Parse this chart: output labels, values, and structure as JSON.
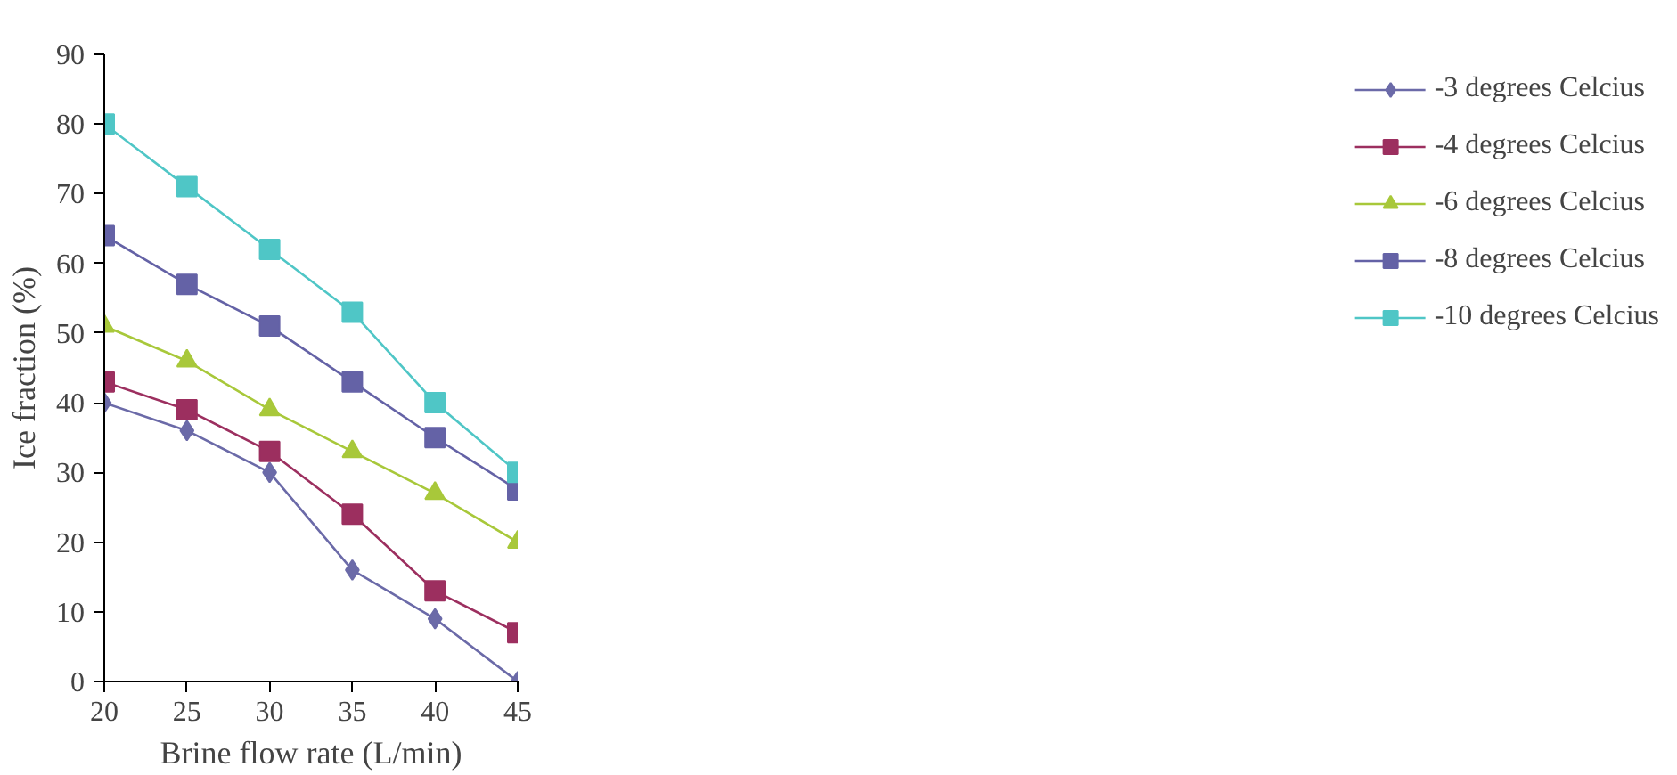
{
  "chart_data": {
    "type": "line",
    "xlabel": "Brine flow rate (L/min)",
    "ylabel": "Ice fraction (%)",
    "x": [
      20,
      25,
      30,
      35,
      40,
      45
    ],
    "xlim": [
      20,
      45
    ],
    "xticks": [
      20,
      25,
      30,
      35,
      40,
      45
    ],
    "ylim": [
      0,
      90
    ],
    "yticks": [
      0,
      10,
      20,
      30,
      40,
      50,
      60,
      70,
      80,
      90
    ],
    "grid": false,
    "legend": "right",
    "series": [
      {
        "name": "-3 degrees Celcius",
        "color": "#6b6aa8",
        "marker": "diamond",
        "values": [
          40,
          36,
          30,
          16,
          9,
          0
        ]
      },
      {
        "name": "-4 degrees Celcius",
        "color": "#9c2f5f",
        "marker": "square",
        "values": [
          43,
          39,
          33,
          24,
          13,
          7
        ]
      },
      {
        "name": "-6 degrees Celcius",
        "color": "#a8c83a",
        "marker": "triangle",
        "values": [
          51,
          46,
          39,
          33,
          27,
          20
        ]
      },
      {
        "name": "-8 degrees Celcius",
        "color": "#6462a6",
        "marker": "square",
        "values": [
          64,
          57,
          51,
          43,
          35,
          27.5
        ]
      },
      {
        "name": "-10 degrees Celcius",
        "color": "#4fc6c6",
        "marker": "square",
        "values": [
          80,
          71,
          62,
          53,
          40,
          30
        ]
      }
    ]
  }
}
